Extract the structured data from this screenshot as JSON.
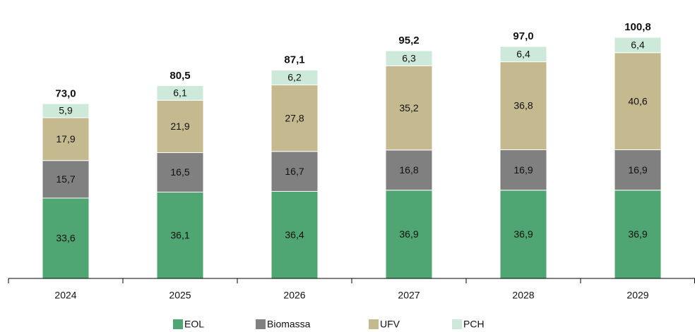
{
  "chart_data": {
    "type": "stacked_bar",
    "categories": [
      "2024",
      "2025",
      "2026",
      "2027",
      "2028",
      "2029"
    ],
    "series": [
      {
        "name": "EOL",
        "color": "#4fa672",
        "values": [
          33.6,
          36.1,
          36.4,
          36.9,
          36.9,
          36.9
        ],
        "value_labels": [
          "33,6",
          "36,1",
          "36,4",
          "36,9",
          "36,9",
          "36,9"
        ]
      },
      {
        "name": "Biomassa",
        "color": "#808080",
        "values": [
          15.7,
          16.5,
          16.7,
          16.8,
          16.9,
          16.9
        ],
        "value_labels": [
          "15,7",
          "16,5",
          "16,7",
          "16,8",
          "16,9",
          "16,9"
        ]
      },
      {
        "name": "UFV",
        "color": "#c4b98f",
        "values": [
          17.9,
          21.9,
          27.8,
          35.2,
          36.8,
          40.6
        ],
        "value_labels": [
          "17,9",
          "21,9",
          "27,8",
          "35,2",
          "36,8",
          "40,6"
        ]
      },
      {
        "name": "PCH",
        "color": "#cde9da",
        "values": [
          5.9,
          6.1,
          6.2,
          6.3,
          6.4,
          6.4
        ],
        "value_labels": [
          "5,9",
          "6,1",
          "6,2",
          "6,3",
          "6,4",
          "6,4"
        ]
      }
    ],
    "totals": [
      73.0,
      80.5,
      87.1,
      95.2,
      97.0,
      100.8
    ],
    "total_labels": [
      "73,0",
      "80,5",
      "87,1",
      "95,2",
      "97,0",
      "100,8"
    ],
    "ylim": [
      0,
      112
    ],
    "legend": "bottom"
  }
}
